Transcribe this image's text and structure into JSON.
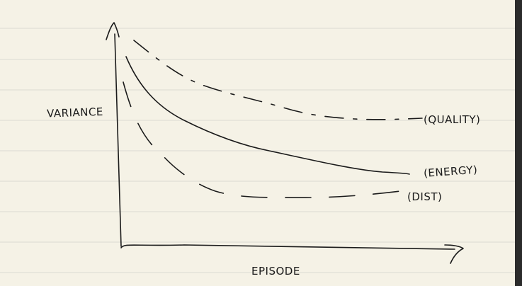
{
  "diagram": {
    "ylabel": "VARIANCE",
    "xlabel": "EPISODE",
    "curves": [
      {
        "label": "(QUALITY)",
        "style": "dash-dot"
      },
      {
        "label": "(ENERGY)",
        "style": "solid"
      },
      {
        "label": "(DIST)",
        "style": "long-dash"
      }
    ]
  },
  "colors": {
    "paper": "#f5f2e6",
    "ruled_line": "#dcdad2",
    "ink": "#1b1b1b",
    "edge": "#2b2b2b"
  }
}
